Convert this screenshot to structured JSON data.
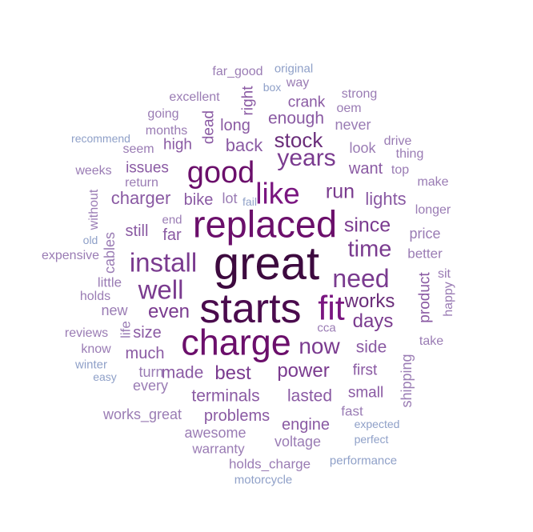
{
  "words": [
    {
      "text": "great",
      "weight": 100,
      "color": "#3d0a3f",
      "rotated": false
    },
    {
      "text": "starts",
      "weight": 88,
      "color": "#4a0b4d",
      "rotated": false
    },
    {
      "text": "replaced",
      "weight": 78,
      "color": "#6b0f6b",
      "rotated": false
    },
    {
      "text": "charge",
      "weight": 74,
      "color": "#6b0f6b",
      "rotated": false
    },
    {
      "text": "fit",
      "weight": 70,
      "color": "#7a1680",
      "rotated": false
    },
    {
      "text": "good",
      "weight": 60,
      "color": "#6b0f6b",
      "rotated": false
    },
    {
      "text": "like",
      "weight": 58,
      "color": "#7a1680",
      "rotated": false
    },
    {
      "text": "install",
      "weight": 52,
      "color": "#7a3b8f",
      "rotated": false
    },
    {
      "text": "well",
      "weight": 52,
      "color": "#7a3b8f",
      "rotated": false
    },
    {
      "text": "need",
      "weight": 50,
      "color": "#7a3b8f",
      "rotated": false
    },
    {
      "text": "years",
      "weight": 46,
      "color": "#7a3b8f",
      "rotated": false
    },
    {
      "text": "time",
      "weight": 44,
      "color": "#7a3b8f",
      "rotated": false
    },
    {
      "text": "now",
      "weight": 42,
      "color": "#7a3b8f",
      "rotated": false
    },
    {
      "text": "stock",
      "weight": 38,
      "color": "#6a2d7a",
      "rotated": false
    },
    {
      "text": "run",
      "weight": 36,
      "color": "#7a3b8f",
      "rotated": false
    },
    {
      "text": "since",
      "weight": 36,
      "color": "#7a3b8f",
      "rotated": false
    },
    {
      "text": "works",
      "weight": 34,
      "color": "#6a2d7a",
      "rotated": false
    },
    {
      "text": "days",
      "weight": 34,
      "color": "#7a3b8f",
      "rotated": false
    },
    {
      "text": "even",
      "weight": 34,
      "color": "#7a3b8f",
      "rotated": false
    },
    {
      "text": "best",
      "weight": 34,
      "color": "#7a3b8f",
      "rotated": false
    },
    {
      "text": "power",
      "weight": 34,
      "color": "#7a3b8f",
      "rotated": false
    },
    {
      "text": "back",
      "weight": 30,
      "color": "#8a5aa3",
      "rotated": false
    },
    {
      "text": "lights",
      "weight": 30,
      "color": "#8a5aa3",
      "rotated": false
    },
    {
      "text": "charger",
      "weight": 30,
      "color": "#8a5aa3",
      "rotated": false
    },
    {
      "text": "enough",
      "weight": 28,
      "color": "#8a5aa3",
      "rotated": false
    },
    {
      "text": "terminals",
      "weight": 28,
      "color": "#8a5aa3",
      "rotated": false
    },
    {
      "text": "lasted",
      "weight": 28,
      "color": "#8a5aa3",
      "rotated": false
    },
    {
      "text": "made",
      "weight": 28,
      "color": "#8a5aa3",
      "rotated": false
    },
    {
      "text": "side",
      "weight": 28,
      "color": "#8a5aa3",
      "rotated": false
    },
    {
      "text": "long",
      "weight": 26,
      "color": "#8a5aa3",
      "rotated": false
    },
    {
      "text": "want",
      "weight": 26,
      "color": "#8a5aa3",
      "rotated": false
    },
    {
      "text": "still",
      "weight": 26,
      "color": "#8a5aa3",
      "rotated": false
    },
    {
      "text": "far",
      "weight": 26,
      "color": "#8a5aa3",
      "rotated": false
    },
    {
      "text": "bike",
      "weight": 26,
      "color": "#8a5aa3",
      "rotated": false
    },
    {
      "text": "much",
      "weight": 26,
      "color": "#8a5aa3",
      "rotated": false
    },
    {
      "text": "size",
      "weight": 26,
      "color": "#8a5aa3",
      "rotated": false
    },
    {
      "text": "problems",
      "weight": 26,
      "color": "#8a5aa3",
      "rotated": false
    },
    {
      "text": "engine",
      "weight": 26,
      "color": "#8a5aa3",
      "rotated": false
    },
    {
      "text": "first",
      "weight": 24,
      "color": "#8a5aa3",
      "rotated": false
    },
    {
      "text": "small",
      "weight": 24,
      "color": "#8a5aa3",
      "rotated": false
    },
    {
      "text": "high",
      "weight": 24,
      "color": "#8a5aa3",
      "rotated": false
    },
    {
      "text": "issues",
      "weight": 24,
      "color": "#8a5aa3",
      "rotated": false
    },
    {
      "text": "crank",
      "weight": 24,
      "color": "#8a5aa3",
      "rotated": false
    },
    {
      "text": "right",
      "weight": 24,
      "color": "#8a5aa3",
      "rotated": true
    },
    {
      "text": "dead",
      "weight": 24,
      "color": "#8a5aa3",
      "rotated": true
    },
    {
      "text": "product",
      "weight": 24,
      "color": "#8a5aa3",
      "rotated": true
    },
    {
      "text": "shipping",
      "weight": 22,
      "color": "#9a7cb4",
      "rotated": true
    },
    {
      "text": "cables",
      "weight": 22,
      "color": "#9a7cb4",
      "rotated": true
    },
    {
      "text": "turn",
      "weight": 22,
      "color": "#9a7cb4",
      "rotated": false
    },
    {
      "text": "every",
      "weight": 22,
      "color": "#9a7cb4",
      "rotated": false
    },
    {
      "text": "voltage",
      "weight": 22,
      "color": "#9a7cb4",
      "rotated": false
    },
    {
      "text": "awesome",
      "weight": 22,
      "color": "#9a7cb4",
      "rotated": false
    },
    {
      "text": "works_great",
      "weight": 22,
      "color": "#9a7cb4",
      "rotated": false
    },
    {
      "text": "new",
      "weight": 22,
      "color": "#9a7cb4",
      "rotated": false
    },
    {
      "text": "price",
      "weight": 22,
      "color": "#9a7cb4",
      "rotated": false
    },
    {
      "text": "look",
      "weight": 22,
      "color": "#9a7cb4",
      "rotated": false
    },
    {
      "text": "never",
      "weight": 22,
      "color": "#9a7cb4",
      "rotated": false
    },
    {
      "text": "lot",
      "weight": 22,
      "color": "#9a7cb4",
      "rotated": false
    },
    {
      "text": "fast",
      "weight": 20,
      "color": "#9a7cb4",
      "rotated": false
    },
    {
      "text": "warranty",
      "weight": 20,
      "color": "#9a7cb4",
      "rotated": false
    },
    {
      "text": "holds_charge",
      "weight": 20,
      "color": "#9a7cb4",
      "rotated": false
    },
    {
      "text": "better",
      "weight": 20,
      "color": "#9a7cb4",
      "rotated": false
    },
    {
      "text": "little",
      "weight": 20,
      "color": "#9a7cb4",
      "rotated": false
    },
    {
      "text": "life",
      "weight": 20,
      "color": "#9a7cb4",
      "rotated": true
    },
    {
      "text": "happy",
      "weight": 18,
      "color": "#9a7cb4",
      "rotated": true
    },
    {
      "text": "without",
      "weight": 18,
      "color": "#9a7cb4",
      "rotated": true
    },
    {
      "text": "far_good",
      "weight": 18,
      "color": "#9a7cb4",
      "rotated": false
    },
    {
      "text": "excellent",
      "weight": 18,
      "color": "#9a7cb4",
      "rotated": false
    },
    {
      "text": "months",
      "weight": 18,
      "color": "#9a7cb4",
      "rotated": false
    },
    {
      "text": "going",
      "weight": 18,
      "color": "#9a7cb4",
      "rotated": false
    },
    {
      "text": "seem",
      "weight": 18,
      "color": "#9a7cb4",
      "rotated": false
    },
    {
      "text": "weeks",
      "weight": 18,
      "color": "#9a7cb4",
      "rotated": false
    },
    {
      "text": "return",
      "weight": 18,
      "color": "#9a7cb4",
      "rotated": false
    },
    {
      "text": "end",
      "weight": 16,
      "color": "#9a7cb4",
      "rotated": false
    },
    {
      "text": "expensive",
      "weight": 18,
      "color": "#9a7cb4",
      "rotated": false
    },
    {
      "text": "holds",
      "weight": 18,
      "color": "#9a7cb4",
      "rotated": false
    },
    {
      "text": "reviews",
      "weight": 18,
      "color": "#9a7cb4",
      "rotated": false
    },
    {
      "text": "know",
      "weight": 18,
      "color": "#9a7cb4",
      "rotated": false
    },
    {
      "text": "way",
      "weight": 18,
      "color": "#9a7cb4",
      "rotated": false
    },
    {
      "text": "strong",
      "weight": 18,
      "color": "#9a7cb4",
      "rotated": false
    },
    {
      "text": "oem",
      "weight": 18,
      "color": "#9a7cb4",
      "rotated": false
    },
    {
      "text": "drive",
      "weight": 18,
      "color": "#9a7cb4",
      "rotated": false
    },
    {
      "text": "thing",
      "weight": 18,
      "color": "#9a7cb4",
      "rotated": false
    },
    {
      "text": "top",
      "weight": 18,
      "color": "#9a7cb4",
      "rotated": false
    },
    {
      "text": "make",
      "weight": 18,
      "color": "#9a7cb4",
      "rotated": false
    },
    {
      "text": "longer",
      "weight": 18,
      "color": "#9a7cb4",
      "rotated": false
    },
    {
      "text": "sit",
      "weight": 18,
      "color": "#9a7cb4",
      "rotated": false
    },
    {
      "text": "take",
      "weight": 18,
      "color": "#9a7cb4",
      "rotated": false
    },
    {
      "text": "cca",
      "weight": 16,
      "color": "#9a7cb4",
      "rotated": false
    },
    {
      "text": "original",
      "weight": 16,
      "color": "#8fa0c8",
      "rotated": false
    },
    {
      "text": "box",
      "weight": 14,
      "color": "#8fa0c8",
      "rotated": false
    },
    {
      "text": "recommend",
      "weight": 14,
      "color": "#8fa0c8",
      "rotated": false
    },
    {
      "text": "fail",
      "weight": 14,
      "color": "#8fa0c8",
      "rotated": false
    },
    {
      "text": "old",
      "weight": 14,
      "color": "#8fa0c8",
      "rotated": false
    },
    {
      "text": "winter",
      "weight": 16,
      "color": "#8fa0c8",
      "rotated": false
    },
    {
      "text": "easy",
      "weight": 14,
      "color": "#8fa0c8",
      "rotated": false
    },
    {
      "text": "expected",
      "weight": 14,
      "color": "#8fa0c8",
      "rotated": false
    },
    {
      "text": "perfect",
      "weight": 14,
      "color": "#8fa0c8",
      "rotated": false
    },
    {
      "text": "performance",
      "weight": 16,
      "color": "#8fa0c8",
      "rotated": false
    },
    {
      "text": "motorcycle",
      "weight": 16,
      "color": "#8fa0c8",
      "rotated": false
    }
  ]
}
